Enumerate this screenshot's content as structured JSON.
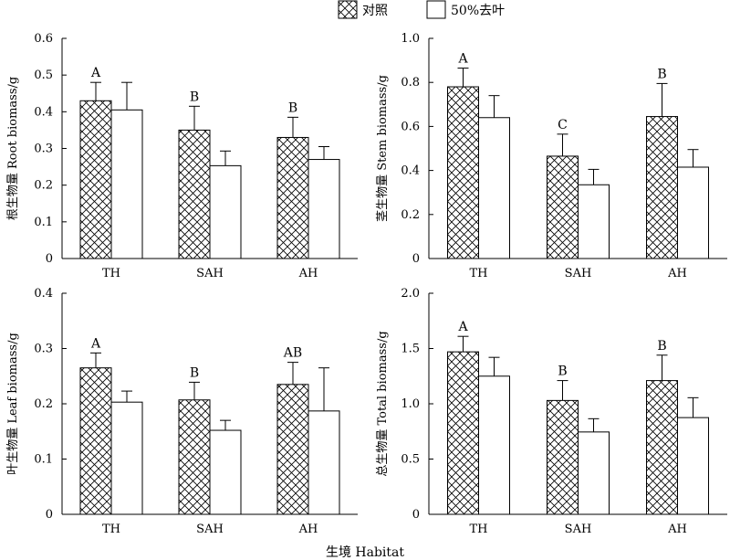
{
  "legend": {
    "items": [
      {
        "label": "对照",
        "pattern": "crosshatch"
      },
      {
        "label": "50%去叶",
        "pattern": "white"
      }
    ]
  },
  "xlabel": "生境 Habitat",
  "chart_data": [
    {
      "type": "bar",
      "ylabel": "根生物量 Root biomass/g",
      "categories": [
        "TH",
        "SAH",
        "AH"
      ],
      "ylim": [
        0,
        0.6
      ],
      "yticks": [
        0,
        0.1,
        0.2,
        0.3,
        0.4,
        0.5,
        0.6
      ],
      "ytick_labels": [
        "0",
        "0.1",
        "0.2",
        "0.3",
        "0.4",
        "0.5",
        "0.6"
      ],
      "series": [
        {
          "name": "对照",
          "values": [
            0.43,
            0.35,
            0.33
          ],
          "errors": [
            0.05,
            0.065,
            0.055
          ]
        },
        {
          "name": "50%去叶",
          "values": [
            0.405,
            0.253,
            0.27
          ],
          "errors": [
            0.075,
            0.04,
            0.035
          ]
        }
      ],
      "significance": [
        "A",
        "B",
        "B"
      ]
    },
    {
      "type": "bar",
      "ylabel": "茎生物量 Stem biomass/g",
      "categories": [
        "TH",
        "SAH",
        "AH"
      ],
      "ylim": [
        0,
        1.0
      ],
      "yticks": [
        0,
        0.2,
        0.4,
        0.6,
        0.8,
        1.0
      ],
      "ytick_labels": [
        "0",
        "0.2",
        "0.4",
        "0.6",
        "0.8",
        "1.0"
      ],
      "series": [
        {
          "name": "对照",
          "values": [
            0.78,
            0.465,
            0.645
          ],
          "errors": [
            0.085,
            0.1,
            0.15
          ]
        },
        {
          "name": "50%去叶",
          "values": [
            0.64,
            0.335,
            0.415
          ],
          "errors": [
            0.1,
            0.07,
            0.08
          ]
        }
      ],
      "significance": [
        "A",
        "C",
        "B"
      ]
    },
    {
      "type": "bar",
      "ylabel": "叶生物量 Leaf biomass/g",
      "categories": [
        "TH",
        "SAH",
        "AH"
      ],
      "ylim": [
        0,
        0.4
      ],
      "yticks": [
        0,
        0.1,
        0.2,
        0.3,
        0.4
      ],
      "ytick_labels": [
        "0",
        "0.1",
        "0.2",
        "0.3",
        "0.4"
      ],
      "series": [
        {
          "name": "对照",
          "values": [
            0.265,
            0.207,
            0.235
          ],
          "errors": [
            0.027,
            0.032,
            0.04
          ]
        },
        {
          "name": "50%去叶",
          "values": [
            0.203,
            0.152,
            0.187
          ],
          "errors": [
            0.02,
            0.018,
            0.078
          ]
        }
      ],
      "significance": [
        "A",
        "B",
        "AB"
      ]
    },
    {
      "type": "bar",
      "ylabel": "总生物量 Total biomass/g",
      "categories": [
        "TH",
        "SAH",
        "AH"
      ],
      "ylim": [
        0,
        2.0
      ],
      "yticks": [
        0,
        0.5,
        1.0,
        1.5,
        2.0
      ],
      "ytick_labels": [
        "0",
        "0.5",
        "1.0",
        "1.5",
        "2.0"
      ],
      "series": [
        {
          "name": "对照",
          "values": [
            1.47,
            1.03,
            1.21
          ],
          "errors": [
            0.14,
            0.18,
            0.23
          ]
        },
        {
          "name": "50%去叶",
          "values": [
            1.25,
            0.745,
            0.875
          ],
          "errors": [
            0.17,
            0.12,
            0.18
          ]
        }
      ],
      "significance": [
        "A",
        "B",
        "B"
      ]
    }
  ]
}
